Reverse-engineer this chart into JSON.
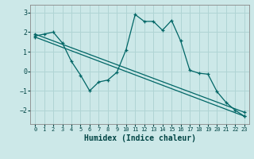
{
  "xlabel": "Humidex (Indice chaleur)",
  "bg_color": "#cce8e8",
  "grid_color": "#b0d4d4",
  "line_color": "#006666",
  "xlim": [
    -0.5,
    23.5
  ],
  "ylim": [
    -2.7,
    3.4
  ],
  "xticks": [
    0,
    1,
    2,
    3,
    4,
    5,
    6,
    7,
    8,
    9,
    10,
    11,
    12,
    13,
    14,
    15,
    16,
    17,
    18,
    19,
    20,
    21,
    22,
    23
  ],
  "yticks": [
    -2,
    -1,
    0,
    1,
    2,
    3
  ],
  "series1_x": [
    0,
    1,
    2,
    3,
    4,
    5,
    6,
    7,
    8,
    9,
    10,
    11,
    12,
    13,
    14,
    15,
    16,
    17,
    18,
    19,
    20,
    21,
    22,
    23
  ],
  "series1_y": [
    1.8,
    1.9,
    2.0,
    1.45,
    0.5,
    -0.2,
    -1.0,
    -0.55,
    -0.45,
    -0.05,
    1.1,
    2.9,
    2.55,
    2.55,
    2.1,
    2.6,
    1.55,
    0.05,
    -0.1,
    -0.15,
    -1.05,
    -1.6,
    -2.0,
    -2.3
  ],
  "series2_x": [
    0,
    23
  ],
  "series2_y": [
    1.75,
    -2.3
  ],
  "series3_x": [
    0,
    23
  ],
  "series3_y": [
    1.9,
    -2.1
  ]
}
